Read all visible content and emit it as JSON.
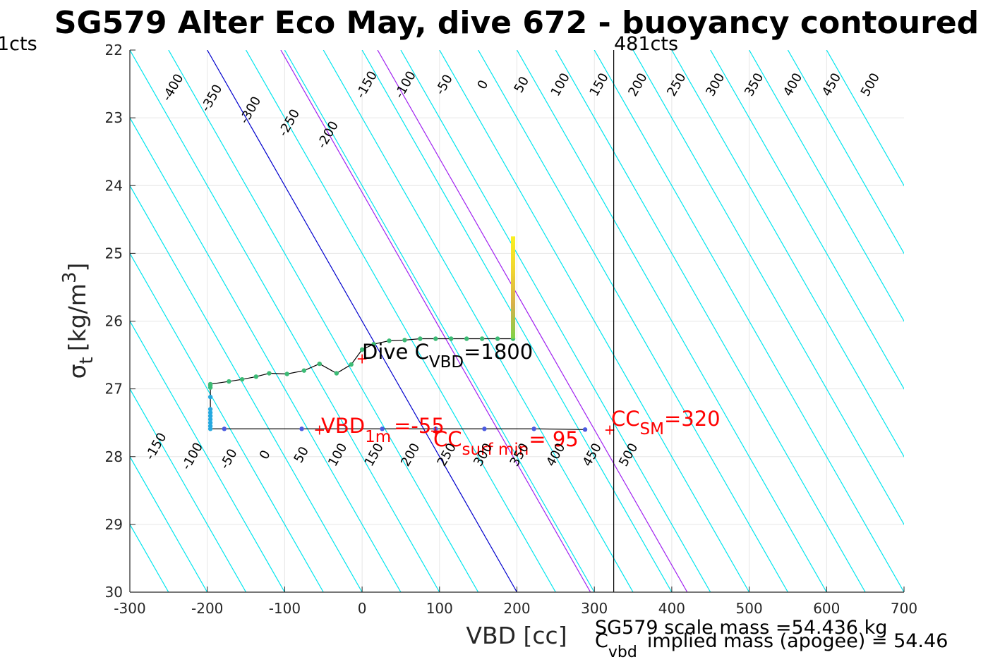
{
  "chart_data": {
    "type": "scatter",
    "title": "SG579 Alter Eco May, dive 672 - buoyancy contoured",
    "xlabel": "VBD [cc]",
    "ylabel_sigma": "σ",
    "ylabel_sub": "t",
    "ylabel_units": "[kg/m",
    "ylabel_sup": "3",
    "ylabel_close": "]",
    "xlim": [
      -300,
      700
    ],
    "ylim": [
      22,
      30
    ],
    "y_reversed": true,
    "grid": true,
    "x_ticks": [
      -300,
      -200,
      -100,
      0,
      100,
      200,
      300,
      400,
      500,
      600,
      700
    ],
    "y_ticks": [
      22,
      23,
      24,
      25,
      26,
      27,
      28,
      29,
      30
    ],
    "x_tick_labels": [
      "-300",
      "-200",
      "-100",
      "0",
      "100",
      "200",
      "300",
      "400",
      "500",
      "600",
      "700"
    ],
    "y_tick_labels": [
      "22",
      "23",
      "24",
      "25",
      "26",
      "27",
      "28",
      "29",
      "30"
    ],
    "contours": {
      "slope_cc_per_sigma": 50,
      "ref_sigma": 26,
      "offsets": [
        -450,
        -400,
        -350,
        -300,
        -250,
        -200,
        -150,
        -100,
        -50,
        0,
        50,
        100,
        150,
        200,
        250,
        300,
        350,
        400,
        450,
        500,
        550,
        600,
        650,
        700,
        750,
        800
      ],
      "colors": {
        "default": "#00e5ee",
        "zero": "#0000cd",
        "highlight": "#a020f0"
      },
      "highlight_offsets": [
        95,
        220
      ],
      "top_labels": [
        "-400",
        "-350",
        "-300",
        "-250",
        "-200",
        "-150",
        "-100",
        "-50",
        "0",
        "50",
        "100",
        "150",
        "200",
        "250",
        "300",
        "350",
        "400",
        "450",
        "500"
      ],
      "bottom_labels": [
        "-150",
        "-100",
        "-50",
        "0",
        "50",
        "100",
        "150",
        "200",
        "250",
        "300",
        "350",
        "400",
        "450",
        "500"
      ]
    },
    "limits": {
      "vertical_line_x": 325,
      "left_label": "1cts",
      "right_label": "481cts"
    },
    "profile": {
      "points": [
        [
          288,
          27.6
        ],
        [
          222,
          27.59
        ],
        [
          158,
          27.59
        ],
        [
          95,
          27.59
        ],
        [
          26,
          27.59
        ],
        [
          -78,
          27.59
        ],
        [
          -178,
          27.59
        ],
        [
          -196,
          27.59
        ],
        [
          -196,
          27.55
        ],
        [
          -196,
          27.5
        ],
        [
          -196,
          27.45
        ],
        [
          -196,
          27.4
        ],
        [
          -196,
          27.35
        ],
        [
          -196,
          27.3
        ],
        [
          -196,
          27.12
        ],
        [
          -196,
          26.98
        ],
        [
          -196,
          26.95
        ],
        [
          -196,
          26.93
        ],
        [
          -172,
          26.89
        ],
        [
          -155,
          26.86
        ],
        [
          -137,
          26.82
        ],
        [
          -120,
          26.77
        ],
        [
          -97,
          26.78
        ],
        [
          -75,
          26.73
        ],
        [
          -55,
          26.63
        ],
        [
          -33,
          26.77
        ],
        [
          -14,
          26.64
        ],
        [
          0,
          26.42
        ],
        [
          15,
          26.34
        ],
        [
          35,
          26.29
        ],
        [
          55,
          26.28
        ],
        [
          75,
          26.26
        ],
        [
          95,
          26.26
        ],
        [
          115,
          26.26
        ],
        [
          135,
          26.26
        ],
        [
          155,
          26.26
        ],
        [
          175,
          26.26
        ],
        [
          195,
          26.26
        ]
      ],
      "ascent": {
        "x": 195,
        "y_from": 26.26,
        "y_to": 24.75
      },
      "descent_color": "#3cbb75",
      "bottom_color": "#26a9e0",
      "deep_color": "#4a5ae0",
      "ascent_colors": [
        "#7ed348",
        "#d6b04a",
        "#f0d530",
        "#f9f021"
      ]
    },
    "markers": [
      {
        "x": 0,
        "y": 26.55
      },
      {
        "x": -55,
        "y": 27.6
      },
      {
        "x": 95,
        "y": 27.62
      },
      {
        "x": 320,
        "y": 27.6
      }
    ],
    "annotations": {
      "dive_cvbd": {
        "main": "Dive C",
        "sub": "VBD",
        "tail": "=1800"
      },
      "vbd_1m": {
        "main": "VBD",
        "sub": "1m",
        "tail": "=-55"
      },
      "cc_surf": {
        "main": "CC",
        "sub": "surf min",
        "tail": "= 95"
      },
      "cc_sm": {
        "main": "CC",
        "sub": "SM",
        "tail": "=320"
      },
      "scale_mass": "SG579 scale mass =54.436 kg",
      "implied_mass": {
        "main": "C",
        "sub": "vbd",
        "tail": "implied mass (apogee) = 54.46"
      }
    },
    "colors": {
      "annotation_red": "#ff0000",
      "axis": "#262626",
      "grid": "#e6e6e6",
      "profile_line": "#000000"
    }
  }
}
